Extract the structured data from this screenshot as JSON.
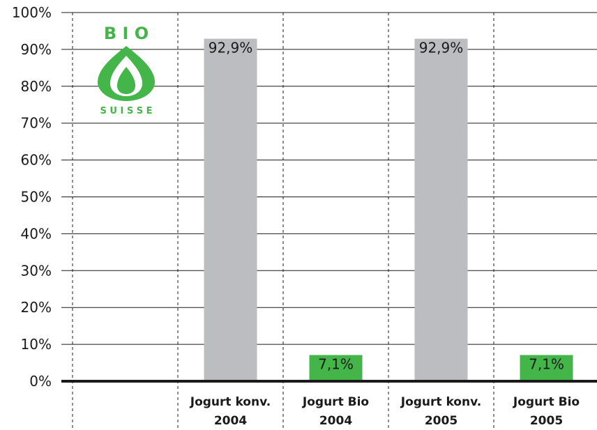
{
  "chart_data": {
    "type": "bar",
    "categories": [
      [
        "Jogurt konv.",
        "2004"
      ],
      [
        "Jogurt Bio",
        "2004"
      ],
      [
        "Jogurt konv.",
        "2005"
      ],
      [
        "Jogurt Bio",
        "2005"
      ]
    ],
    "values": [
      92.9,
      7.1,
      92.9,
      7.1
    ],
    "data_labels": [
      "92,9%",
      "7,1%",
      "92,9%",
      "7,1%"
    ],
    "bar_colors": [
      "#bcbdc0",
      "#44b549",
      "#bcbdc0",
      "#44b549"
    ],
    "ylim": [
      0,
      100
    ],
    "yticks": [
      0,
      10,
      20,
      30,
      40,
      50,
      60,
      70,
      80,
      90,
      100
    ],
    "ytick_labels": [
      "0%",
      "10%",
      "20%",
      "30%",
      "40%",
      "50%",
      "60%",
      "70%",
      "80%",
      "90%",
      "100%"
    ],
    "grid": true,
    "title": "",
    "xlabel": "",
    "ylabel": ""
  },
  "logo": {
    "top_text": "B I O",
    "bottom_text": "S U I S S E",
    "color": "#44b549",
    "icon": "bud-icon"
  }
}
